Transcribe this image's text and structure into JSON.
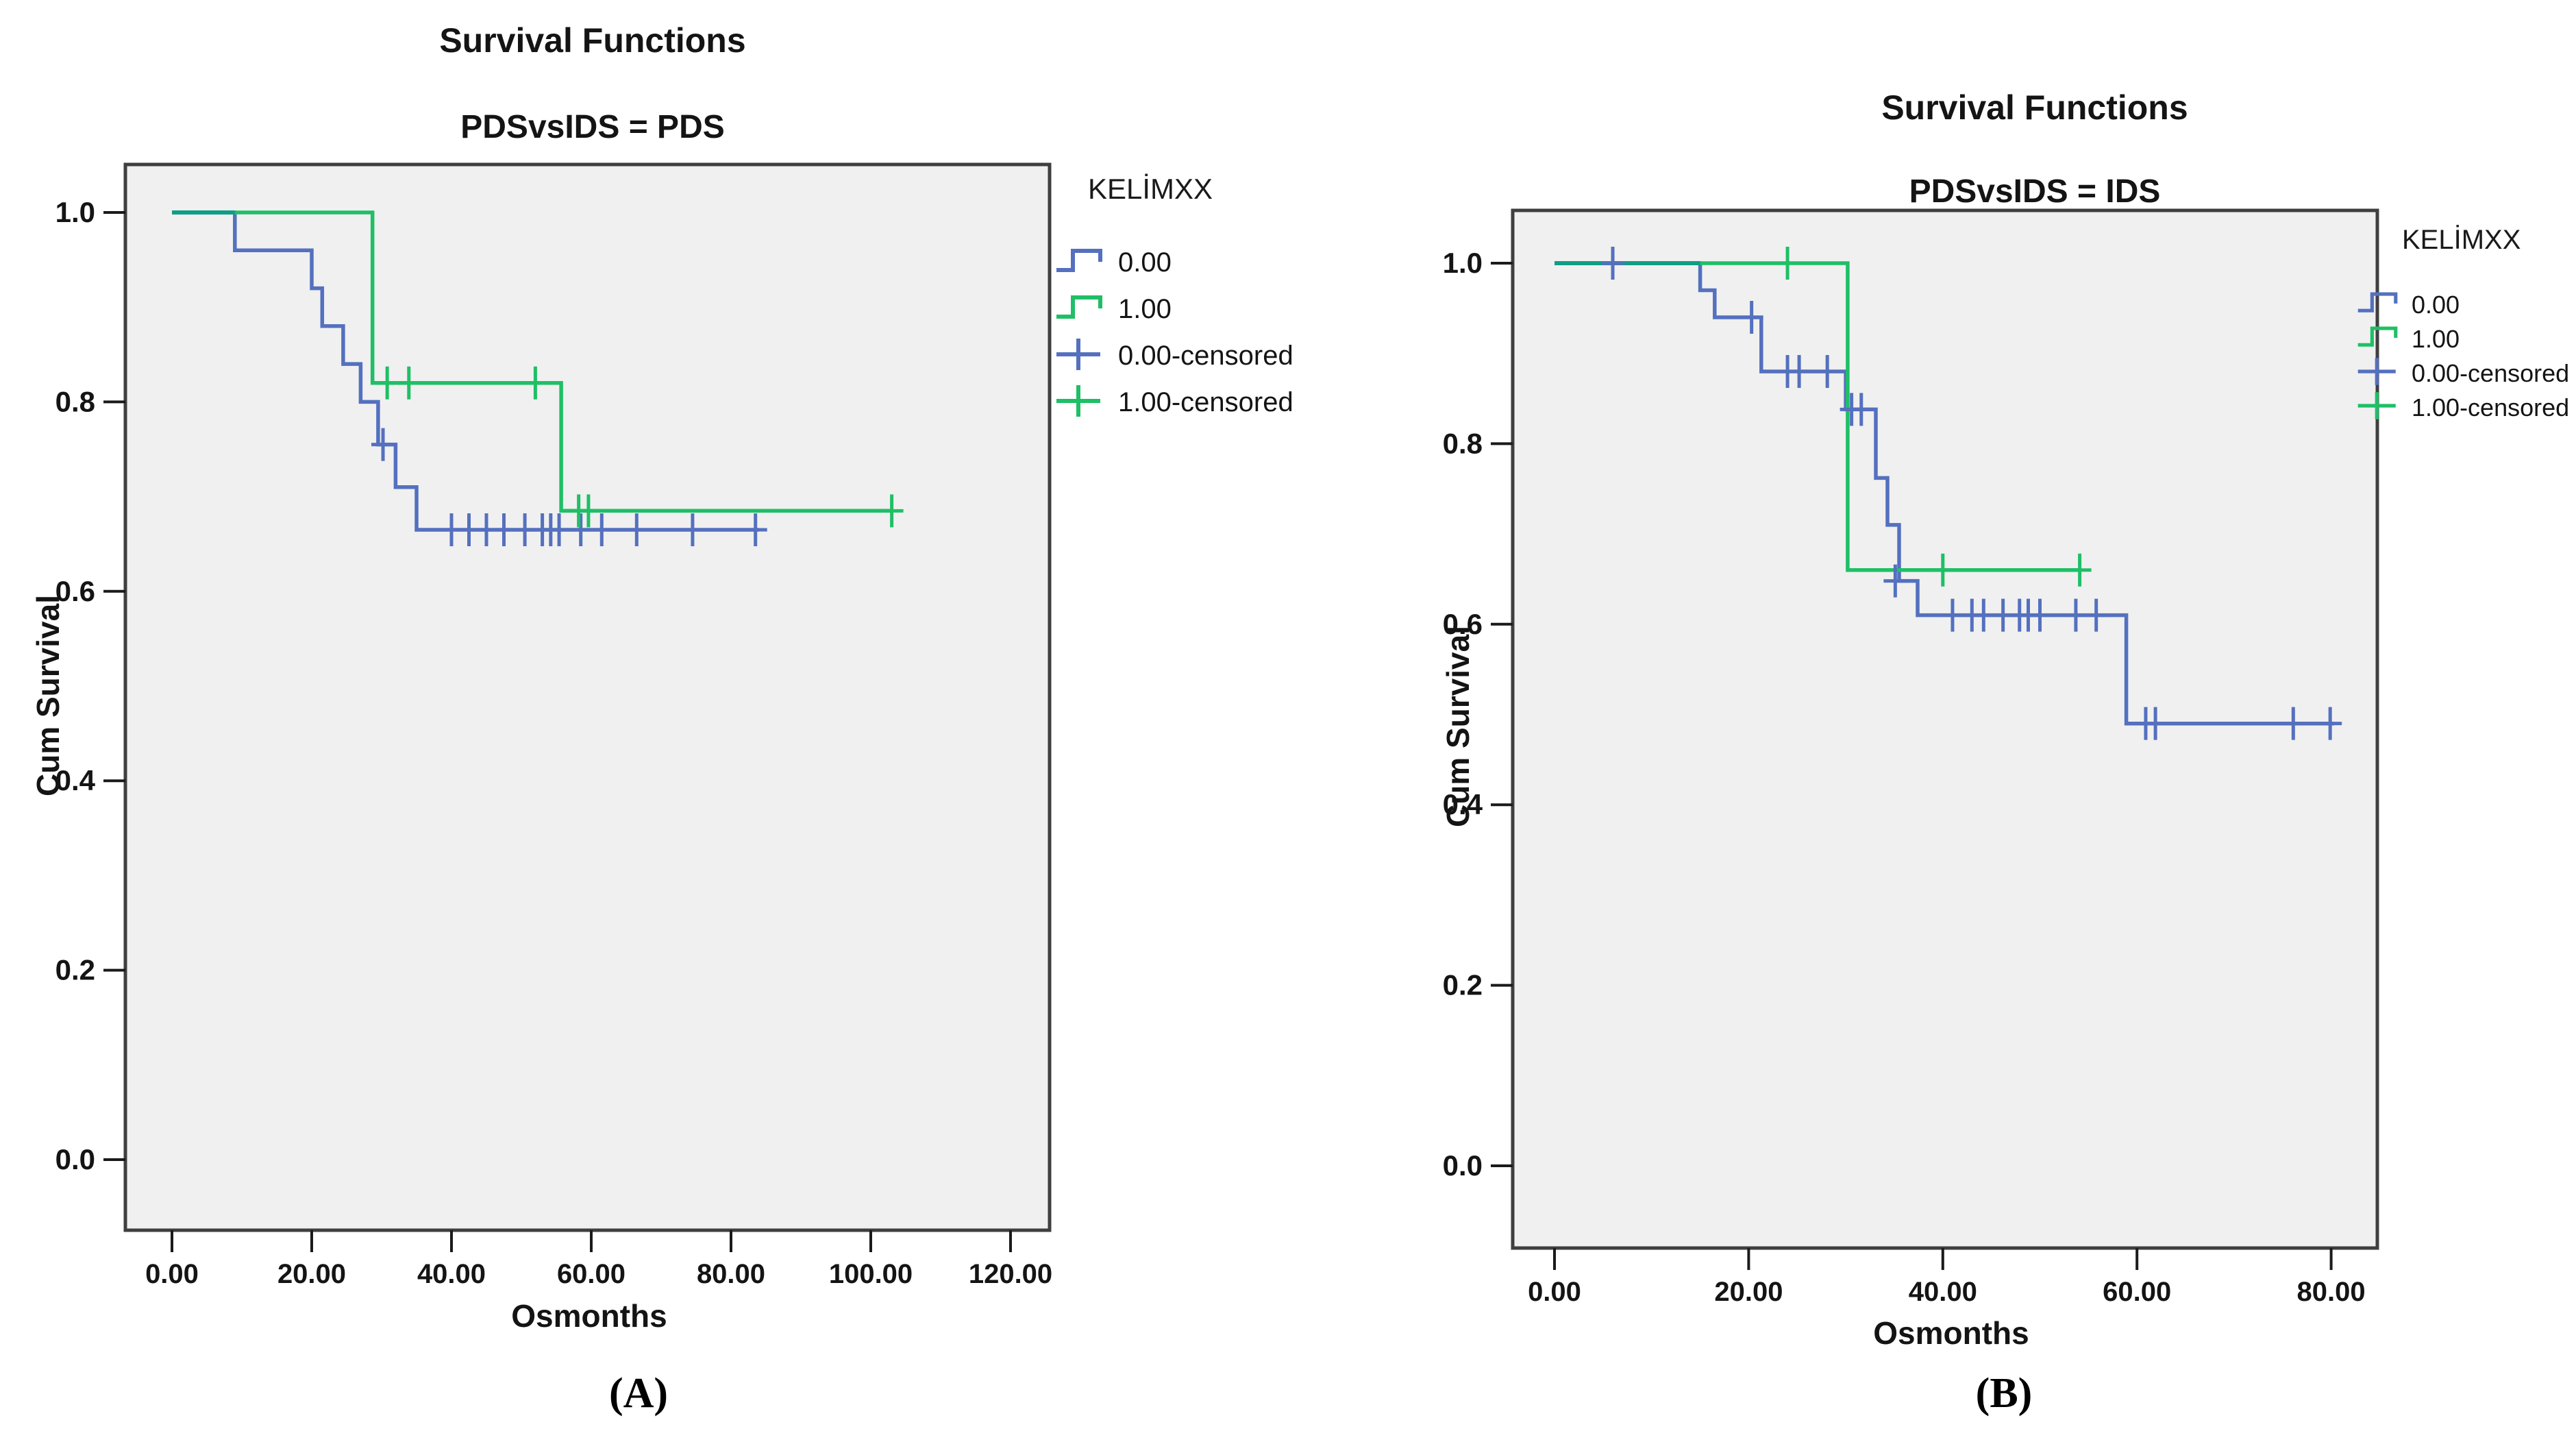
{
  "page": {
    "background": "#ffffff"
  },
  "colors": {
    "blue": "#5470bf",
    "green": "#1fbf66",
    "teal": "#0f9e86",
    "panel_fill": "#f0f0f0",
    "panel_border": "#3f3f3f",
    "tick": "#1a1a1a",
    "text": "#141414"
  },
  "chart_data": [
    {
      "id": "A",
      "type": "line",
      "subtype": "kaplan-meier-step",
      "title": "Survival Functions",
      "subtitle": "PDSvsIDS = PDS",
      "xlabel": "Osmonths",
      "ylabel": "Cum Survival",
      "caption": "(A)",
      "xlim": [
        0,
        120
      ],
      "ylim": [
        0.0,
        1.0
      ],
      "grid": false,
      "x_ticks": [
        {
          "v": 0,
          "label": "0.00"
        },
        {
          "v": 20,
          "label": "20.00"
        },
        {
          "v": 40,
          "label": "40.00"
        },
        {
          "v": 60,
          "label": "60.00"
        },
        {
          "v": 80,
          "label": "80.00"
        },
        {
          "v": 100,
          "label": "100.00"
        },
        {
          "v": 120,
          "label": "120.00"
        }
      ],
      "y_ticks": [
        {
          "v": 1.0,
          "label": "1.0"
        },
        {
          "v": 0.8,
          "label": "0.8"
        },
        {
          "v": 0.6,
          "label": "0.6"
        },
        {
          "v": 0.4,
          "label": "0.4"
        },
        {
          "v": 0.2,
          "label": "0.2"
        },
        {
          "v": 0.0,
          "label": "0.0"
        }
      ],
      "legend": {
        "title": "KELİMXX",
        "position": "right",
        "items": [
          {
            "label": "0.00",
            "type": "step-line",
            "color": "blue"
          },
          {
            "label": "1.00",
            "type": "step-line",
            "color": "green"
          },
          {
            "label": "0.00-censored",
            "type": "plus",
            "color": "blue"
          },
          {
            "label": "1.00-censored",
            "type": "plus",
            "color": "green"
          }
        ]
      },
      "series": [
        {
          "name": "0.00",
          "color": "blue",
          "steps": [
            [
              0,
              1.0
            ],
            [
              9,
              1.0
            ],
            [
              9,
              0.96
            ],
            [
              20,
              0.96
            ],
            [
              20,
              0.92
            ],
            [
              21.5,
              0.92
            ],
            [
              21.5,
              0.88
            ],
            [
              24.5,
              0.88
            ],
            [
              24.5,
              0.84
            ],
            [
              27,
              0.84
            ],
            [
              27,
              0.8
            ],
            [
              29.5,
              0.8
            ],
            [
              29.5,
              0.755
            ],
            [
              32,
              0.755
            ],
            [
              32,
              0.71
            ],
            [
              35,
              0.71
            ],
            [
              35,
              0.665
            ],
            [
              84,
              0.665
            ]
          ],
          "censors": [
            [
              30.2,
              0.755
            ],
            [
              40,
              0.665
            ],
            [
              42.5,
              0.665
            ],
            [
              45,
              0.665
            ],
            [
              47.5,
              0.665
            ],
            [
              50.5,
              0.665
            ],
            [
              53,
              0.665
            ],
            [
              54.2,
              0.665
            ],
            [
              55.4,
              0.665
            ],
            [
              58.5,
              0.665
            ],
            [
              61.5,
              0.665
            ],
            [
              66.5,
              0.665
            ],
            [
              74.5,
              0.665
            ],
            [
              83.5,
              0.665
            ]
          ]
        },
        {
          "name": "1.00",
          "color": "green",
          "steps": [
            [
              0,
              1.0
            ],
            [
              28.7,
              1.0
            ],
            [
              28.7,
              0.82
            ],
            [
              55.7,
              0.82
            ],
            [
              55.7,
              0.685
            ],
            [
              103,
              0.685
            ]
          ],
          "censors": [
            [
              30.8,
              0.82
            ],
            [
              33.9,
              0.82
            ],
            [
              52,
              0.82
            ],
            [
              58.2,
              0.685
            ],
            [
              59.6,
              0.685
            ],
            [
              103,
              0.685
            ]
          ]
        }
      ],
      "overlap_segment": {
        "y": 1.0,
        "x0": 0,
        "x1": 9,
        "color": "teal"
      }
    },
    {
      "id": "B",
      "type": "line",
      "subtype": "kaplan-meier-step",
      "title": "Survival Functions",
      "subtitle": "PDSvsIDS = IDS",
      "xlabel": "Osmonths",
      "ylabel": "Cum Survival",
      "caption": "(B)",
      "xlim": [
        0,
        80
      ],
      "ylim": [
        0.0,
        1.0
      ],
      "grid": false,
      "x_ticks": [
        {
          "v": 0,
          "label": "0.00"
        },
        {
          "v": 20,
          "label": "20.00"
        },
        {
          "v": 40,
          "label": "40.00"
        },
        {
          "v": 60,
          "label": "60.00"
        },
        {
          "v": 80,
          "label": "80.00"
        }
      ],
      "y_ticks": [
        {
          "v": 1.0,
          "label": "1.0"
        },
        {
          "v": 0.8,
          "label": "0.8"
        },
        {
          "v": 0.6,
          "label": "0.6"
        },
        {
          "v": 0.4,
          "label": "0.4"
        },
        {
          "v": 0.2,
          "label": "0.2"
        },
        {
          "v": 0.0,
          "label": "0.0"
        }
      ],
      "legend": {
        "title": "KELİMXX",
        "position": "right",
        "items": [
          {
            "label": "0.00",
            "type": "step-line",
            "color": "blue"
          },
          {
            "label": "1.00",
            "type": "step-line",
            "color": "green"
          },
          {
            "label": "0.00-censored",
            "type": "plus",
            "color": "blue"
          },
          {
            "label": "1.00-censored",
            "type": "plus",
            "color": "green"
          }
        ]
      },
      "series": [
        {
          "name": "0.00",
          "color": "blue",
          "steps": [
            [
              0,
              1.0
            ],
            [
              15,
              1.0
            ],
            [
              15,
              0.97
            ],
            [
              16.5,
              0.97
            ],
            [
              16.5,
              0.94
            ],
            [
              21.3,
              0.94
            ],
            [
              21.3,
              0.88
            ],
            [
              30,
              0.88
            ],
            [
              30,
              0.838
            ],
            [
              33.1,
              0.838
            ],
            [
              33.1,
              0.762
            ],
            [
              34.3,
              0.762
            ],
            [
              34.3,
              0.71
            ],
            [
              35.5,
              0.71
            ],
            [
              35.5,
              0.648
            ],
            [
              37.4,
              0.648
            ],
            [
              37.4,
              0.61
            ],
            [
              58.9,
              0.61
            ],
            [
              58.9,
              0.49
            ],
            [
              80.3,
              0.49
            ]
          ],
          "censors": [
            [
              6,
              1.0
            ],
            [
              20.3,
              0.94
            ],
            [
              24,
              0.88
            ],
            [
              25.2,
              0.88
            ],
            [
              28.1,
              0.88
            ],
            [
              30.6,
              0.838
            ],
            [
              31.6,
              0.838
            ],
            [
              35.1,
              0.648
            ],
            [
              41,
              0.61
            ],
            [
              43,
              0.61
            ],
            [
              44.2,
              0.61
            ],
            [
              46.2,
              0.61
            ],
            [
              47.9,
              0.61
            ],
            [
              48.8,
              0.61
            ],
            [
              50,
              0.61
            ],
            [
              53.7,
              0.61
            ],
            [
              55.8,
              0.61
            ],
            [
              60.9,
              0.49
            ],
            [
              61.9,
              0.49
            ],
            [
              76.1,
              0.49
            ],
            [
              79.9,
              0.49
            ]
          ]
        },
        {
          "name": "1.00",
          "color": "green",
          "steps": [
            [
              0,
              1.0
            ],
            [
              30.2,
              1.0
            ],
            [
              30.2,
              0.66
            ],
            [
              54.1,
              0.66
            ]
          ],
          "censors": [
            [
              24,
              1.0
            ],
            [
              40,
              0.66
            ],
            [
              54.1,
              0.66
            ]
          ]
        }
      ],
      "overlap_segment": {
        "y": 1.0,
        "x0": 0,
        "x1": 15,
        "color": "teal"
      }
    }
  ]
}
